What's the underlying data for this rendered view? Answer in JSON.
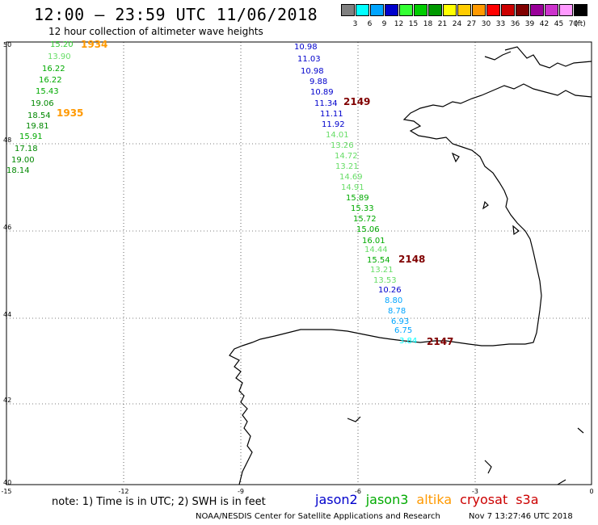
{
  "header": {
    "title": "12:00 — 23:59 UTC 11/06/2018",
    "subtitle": "12 hour collection of altimeter wave heights"
  },
  "colorbar": {
    "unit": "(ft)",
    "bins": [
      {
        "color": "#808080",
        "label": "3"
      },
      {
        "color": "#00ffff",
        "label": "6"
      },
      {
        "color": "#00a5ff",
        "label": "9"
      },
      {
        "color": "#0000cc",
        "label": "12"
      },
      {
        "color": "#33ff33",
        "label": "15"
      },
      {
        "color": "#00cc00",
        "label": "18"
      },
      {
        "color": "#009900",
        "label": "21"
      },
      {
        "color": "#ffff00",
        "label": "24"
      },
      {
        "color": "#ffcc00",
        "label": "27"
      },
      {
        "color": "#ff9900",
        "label": "30"
      },
      {
        "color": "#ff0000",
        "label": "33"
      },
      {
        "color": "#cc0000",
        "label": "36"
      },
      {
        "color": "#800000",
        "label": "39"
      },
      {
        "color": "#990099",
        "label": "42"
      },
      {
        "color": "#cc33cc",
        "label": "45"
      },
      {
        "color": "#ff99ff",
        "label": "70"
      },
      {
        "color": "#000000",
        "label": ""
      }
    ]
  },
  "map": {
    "lon_ticks": [
      "-15",
      "-12",
      "-9",
      "-6",
      "-3",
      "0"
    ],
    "lat_ticks": [
      "50",
      "48",
      "46",
      "44",
      "42",
      "40"
    ],
    "tracks": [
      {
        "satellite": "altika",
        "points": [
          {
            "label": "15.20",
            "color": "#33cc33"
          },
          {
            "label": "13.90",
            "color": "#66dd66"
          },
          {
            "label": "16.22",
            "color": "#00aa00"
          },
          {
            "label": "16.22",
            "color": "#00aa00"
          },
          {
            "label": "15.43",
            "color": "#00aa00"
          },
          {
            "label": "19.06",
            "color": "#008800"
          },
          {
            "label": "18.54",
            "color": "#008800"
          },
          {
            "label": "19.81",
            "color": "#008800"
          },
          {
            "label": "15.91",
            "color": "#00aa00"
          },
          {
            "label": "17.18",
            "color": "#008800"
          },
          {
            "label": "19.00",
            "color": "#008800"
          },
          {
            "label": "18.14",
            "color": "#008800"
          }
        ],
        "pass_labels": [
          {
            "label": "1934",
            "color": "#ff9900"
          },
          {
            "label": "1935",
            "color": "#ff9900"
          }
        ]
      },
      {
        "satellite": "cryosat",
        "points": [
          {
            "label": "10.98",
            "color": "#0000cc"
          },
          {
            "label": "11.03",
            "color": "#0000cc"
          },
          {
            "label": "10.98",
            "color": "#0000cc"
          },
          {
            "label": "9.88",
            "color": "#0000cc"
          },
          {
            "label": "10.89",
            "color": "#0000cc"
          },
          {
            "label": "11.34",
            "color": "#0000cc"
          },
          {
            "label": "11.11",
            "color": "#0000cc"
          },
          {
            "label": "11.92",
            "color": "#0000cc"
          },
          {
            "label": "14.01",
            "color": "#66dd66"
          },
          {
            "label": "13.26",
            "color": "#66dd66"
          },
          {
            "label": "14.72",
            "color": "#66dd66"
          },
          {
            "label": "13.21",
            "color": "#66dd66"
          },
          {
            "label": "14.69",
            "color": "#66dd66"
          },
          {
            "label": "14.91",
            "color": "#66dd66"
          },
          {
            "label": "15.89",
            "color": "#00aa00"
          },
          {
            "label": "15.33",
            "color": "#00aa00"
          },
          {
            "label": "15.72",
            "color": "#00aa00"
          },
          {
            "label": "15.06",
            "color": "#00aa00"
          },
          {
            "label": "16.01",
            "color": "#00aa00"
          },
          {
            "label": "14.44",
            "color": "#66dd66"
          },
          {
            "label": "15.54",
            "color": "#00aa00"
          },
          {
            "label": "13.21",
            "color": "#66dd66"
          },
          {
            "label": "13.53",
            "color": "#66dd66"
          },
          {
            "label": "10.26",
            "color": "#0000cc"
          },
          {
            "label": "8.80",
            "color": "#00a5ff"
          },
          {
            "label": "8.78",
            "color": "#00a5ff"
          },
          {
            "label": "6.93",
            "color": "#00a5ff"
          },
          {
            "label": "6.75",
            "color": "#00a5ff"
          },
          {
            "label": "3.84",
            "color": "#00ffff"
          }
        ],
        "pass_labels": [
          {
            "label": "2149",
            "color": "#800000"
          },
          {
            "label": "2148",
            "color": "#800000"
          },
          {
            "label": "2147",
            "color": "#800000"
          }
        ]
      }
    ]
  },
  "footer": {
    "note": "note:  1) Time is in UTC;  2) SWH is in feet",
    "satellites": [
      {
        "name": "jason2",
        "color": "#0000cc"
      },
      {
        "name": "jason3",
        "color": "#00aa00"
      },
      {
        "name": "altika",
        "color": "#ff9900"
      },
      {
        "name": "cryosat",
        "color": "#cc0000"
      },
      {
        "name": "s3a",
        "color": "#cc0000"
      }
    ],
    "credit": "NOAA/NESDIS Center for Satellite Applications and Research",
    "timestamp": "Nov  7 13:27:46 UTC 2018"
  }
}
